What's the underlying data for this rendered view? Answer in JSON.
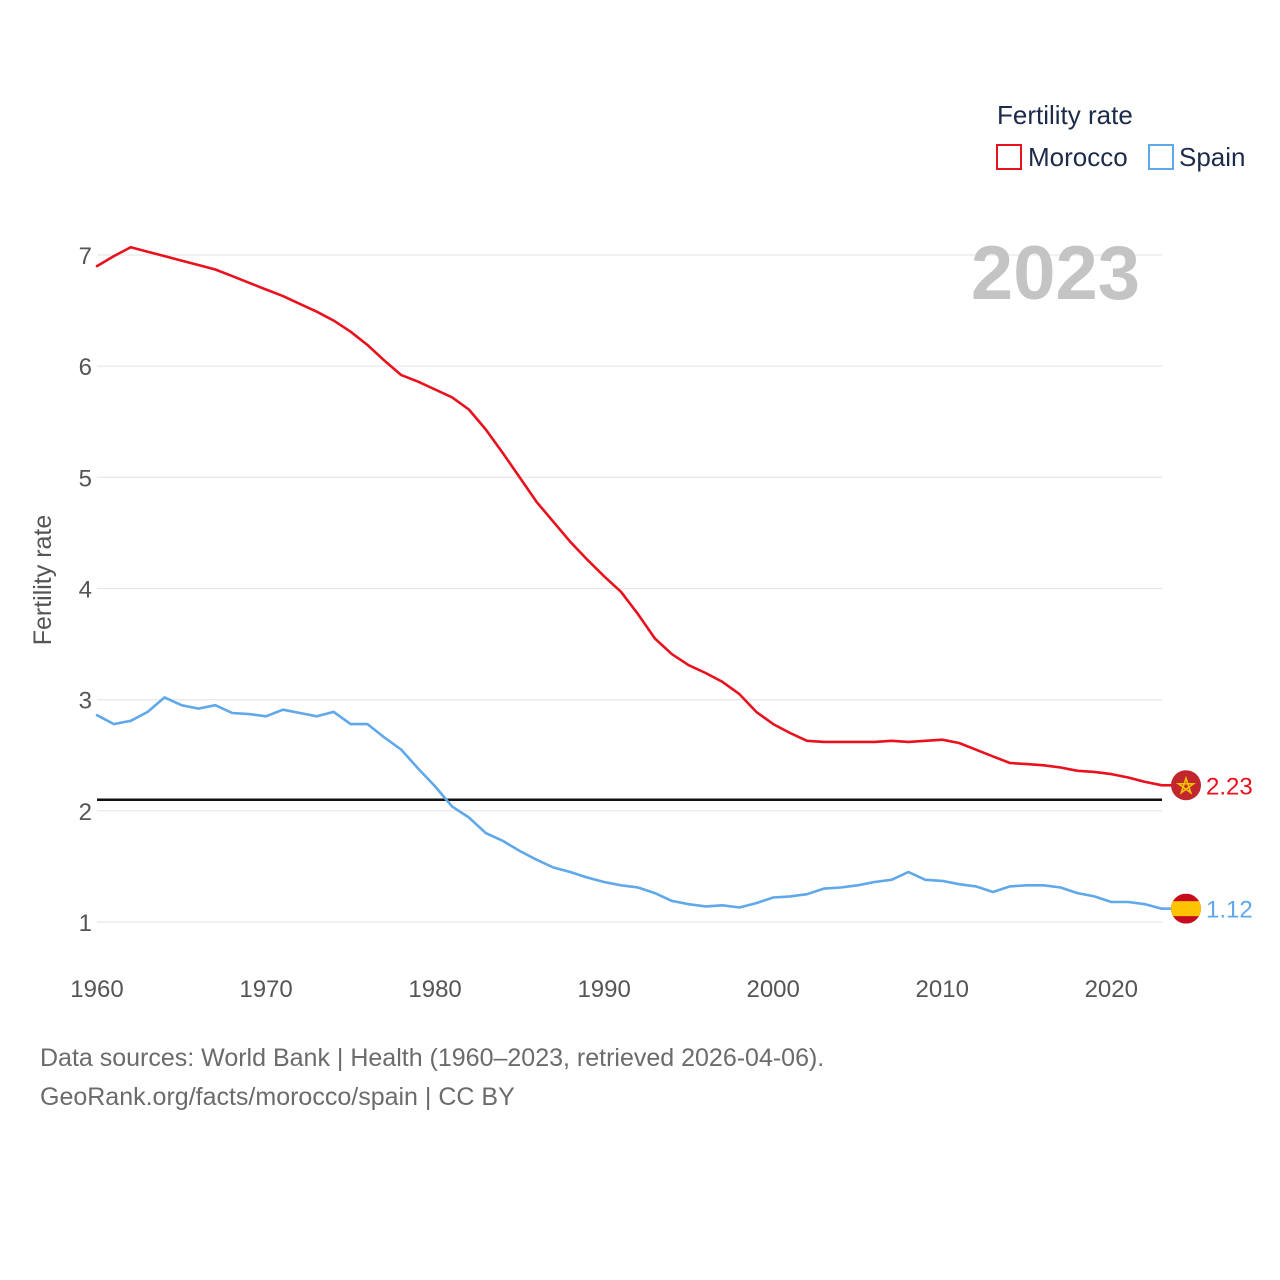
{
  "chart_data": {
    "type": "line",
    "year_label": "2023",
    "ylabel": "Fertility rate",
    "xlim": [
      1960,
      2023
    ],
    "ylim": [
      0.3,
      7.3
    ],
    "yticks": [
      1,
      2,
      3,
      4,
      5,
      6,
      7
    ],
    "xticks": [
      1960,
      1970,
      1980,
      1990,
      2000,
      2010,
      2020
    ],
    "reference_line": 2.1,
    "legend": {
      "title": "Fertility rate",
      "position": "top-right"
    },
    "x": [
      1960,
      1961,
      1962,
      1963,
      1964,
      1965,
      1966,
      1967,
      1968,
      1969,
      1970,
      1971,
      1972,
      1973,
      1974,
      1975,
      1976,
      1977,
      1978,
      1979,
      1980,
      1981,
      1982,
      1983,
      1984,
      1985,
      1986,
      1987,
      1988,
      1989,
      1990,
      1991,
      1992,
      1993,
      1994,
      1995,
      1996,
      1997,
      1998,
      1999,
      2000,
      2001,
      2002,
      2003,
      2004,
      2005,
      2006,
      2007,
      2008,
      2009,
      2010,
      2011,
      2012,
      2013,
      2014,
      2015,
      2016,
      2017,
      2018,
      2019,
      2020,
      2021,
      2022,
      2023
    ],
    "series": [
      {
        "name": "Morocco",
        "color": "#e8111d",
        "end_label": "2.23",
        "flag": "morocco-flag-icon",
        "values": [
          6.9,
          6.99,
          7.07,
          7.03,
          6.99,
          6.95,
          6.91,
          6.87,
          6.81,
          6.75,
          6.69,
          6.63,
          6.56,
          6.49,
          6.41,
          6.31,
          6.19,
          6.05,
          5.92,
          5.86,
          5.79,
          5.72,
          5.61,
          5.43,
          5.22,
          5.0,
          4.78,
          4.6,
          4.42,
          4.26,
          4.11,
          3.97,
          3.77,
          3.55,
          3.41,
          3.31,
          3.24,
          3.16,
          3.05,
          2.89,
          2.78,
          2.7,
          2.63,
          2.62,
          2.62,
          2.62,
          2.62,
          2.63,
          2.62,
          2.63,
          2.64,
          2.61,
          2.55,
          2.49,
          2.43,
          2.42,
          2.41,
          2.39,
          2.36,
          2.35,
          2.33,
          2.3,
          2.26,
          2.23
        ]
      },
      {
        "name": "Spain",
        "color": "#5fa8e9",
        "end_label": "1.12",
        "flag": "spain-flag-icon",
        "values": [
          2.86,
          2.78,
          2.81,
          2.89,
          3.02,
          2.95,
          2.92,
          2.95,
          2.88,
          2.87,
          2.85,
          2.91,
          2.88,
          2.85,
          2.89,
          2.78,
          2.78,
          2.66,
          2.55,
          2.38,
          2.22,
          2.04,
          1.94,
          1.8,
          1.73,
          1.64,
          1.56,
          1.49,
          1.45,
          1.4,
          1.36,
          1.33,
          1.31,
          1.26,
          1.19,
          1.16,
          1.14,
          1.15,
          1.13,
          1.17,
          1.22,
          1.23,
          1.25,
          1.3,
          1.31,
          1.33,
          1.36,
          1.38,
          1.45,
          1.38,
          1.37,
          1.34,
          1.32,
          1.27,
          1.32,
          1.33,
          1.33,
          1.31,
          1.26,
          1.23,
          1.18,
          1.18,
          1.16,
          1.12
        ]
      }
    ]
  },
  "footer": {
    "source_line": "Data sources: World Bank | Health (1960–2023, retrieved 2026-04-06).",
    "attribution_line": "GeoRank.org/facts/morocco/spain | CC BY"
  }
}
